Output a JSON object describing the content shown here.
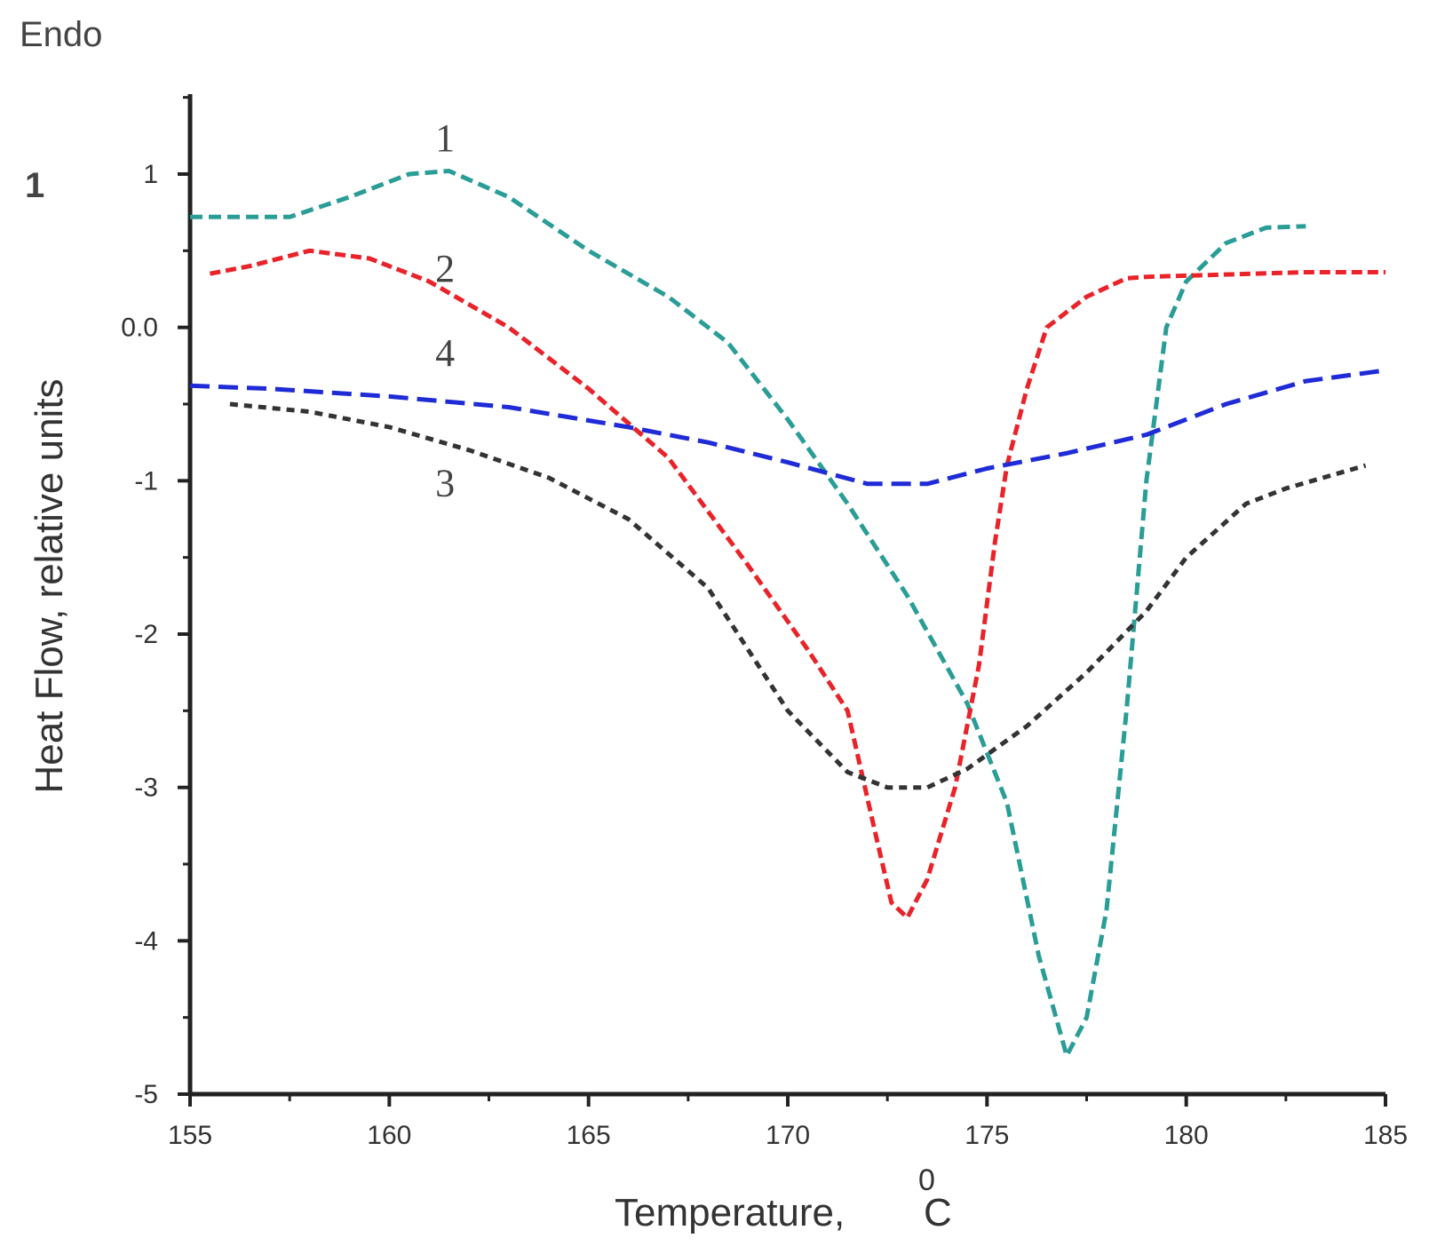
{
  "corner_label": "Endo",
  "panel_marker": "1",
  "chart_data": {
    "type": "line",
    "xlabel": "Temperature,",
    "xlabel_unit_superscript": "0",
    "xlabel_unit": "C",
    "ylabel": "Heat Flow, relative units",
    "xlim": [
      155,
      185
    ],
    "ylim": [
      -5,
      1.5
    ],
    "xticks": [
      155,
      160,
      165,
      170,
      175,
      180,
      185
    ],
    "xtick_labels": [
      "155",
      "160",
      "165",
      "170",
      "175",
      "180",
      "185"
    ],
    "yticks": [
      1,
      0,
      -1,
      -2,
      -3,
      -4,
      -5
    ],
    "ytick_labels": [
      "1",
      "0.0",
      "-1",
      "-2",
      "-3",
      "-4",
      "-5"
    ],
    "grid": false,
    "series": [
      {
        "name": "1",
        "color": "#2a9d97",
        "dash": "14 7",
        "label_at": [
          161.4,
          1.15
        ],
        "x": [
          155.0,
          156.0,
          157.5,
          159.0,
          160.5,
          161.5,
          163.0,
          165.0,
          167.0,
          168.5,
          170.0,
          171.5,
          173.0,
          174.5,
          175.5,
          176.3,
          177.0,
          177.5,
          178.0,
          178.5,
          179.0,
          179.5,
          180.0,
          181.0,
          182.0,
          183.0
        ],
        "y": [
          0.72,
          0.72,
          0.72,
          0.85,
          1.0,
          1.02,
          0.85,
          0.5,
          0.2,
          -0.1,
          -0.6,
          -1.15,
          -1.75,
          -2.45,
          -3.1,
          -4.1,
          -4.75,
          -4.5,
          -3.8,
          -2.5,
          -1.0,
          0.0,
          0.3,
          0.55,
          0.65,
          0.66
        ]
      },
      {
        "name": "2",
        "color": "#e8232a",
        "dash": "12 6",
        "label_at": [
          161.4,
          0.3
        ],
        "x": [
          155.5,
          156.5,
          158.0,
          159.5,
          161.0,
          163.0,
          165.0,
          167.0,
          169.0,
          170.5,
          171.5,
          172.2,
          172.6,
          173.0,
          173.5,
          174.2,
          174.8,
          175.2,
          175.5,
          176.0,
          176.5,
          177.5,
          178.5,
          179.0,
          183.0,
          185.0
        ],
        "y": [
          0.35,
          0.4,
          0.5,
          0.45,
          0.3,
          0.0,
          -0.4,
          -0.85,
          -1.55,
          -2.1,
          -2.5,
          -3.3,
          -3.75,
          -3.85,
          -3.6,
          -3.0,
          -2.2,
          -1.4,
          -0.9,
          -0.4,
          0.0,
          0.2,
          0.32,
          0.33,
          0.36,
          0.36
        ]
      },
      {
        "name": "3",
        "color": "#333333",
        "dash": "9 7",
        "label_at": [
          161.4,
          -1.1
        ],
        "x": [
          156.0,
          158.0,
          160.0,
          162.0,
          164.0,
          166.0,
          168.0,
          170.0,
          171.5,
          172.5,
          173.5,
          174.5,
          176.0,
          177.5,
          179.0,
          180.0,
          181.5,
          182.5,
          184.5
        ],
        "y": [
          -0.5,
          -0.55,
          -0.65,
          -0.8,
          -0.98,
          -1.25,
          -1.7,
          -2.5,
          -2.9,
          -3.0,
          -3.0,
          -2.88,
          -2.6,
          -2.25,
          -1.85,
          -1.5,
          -1.15,
          -1.05,
          -0.9
        ]
      },
      {
        "name": "4",
        "color": "#1f2bd6",
        "dash": "22 10",
        "label_at": [
          161.4,
          -0.25
        ],
        "x": [
          155.0,
          157.0,
          160.0,
          163.0,
          166.0,
          168.0,
          170.0,
          172.0,
          173.5,
          175.0,
          177.0,
          179.0,
          181.0,
          183.0,
          185.0
        ],
        "y": [
          -0.38,
          -0.4,
          -0.45,
          -0.52,
          -0.65,
          -0.75,
          -0.88,
          -1.02,
          -1.02,
          -0.92,
          -0.82,
          -0.7,
          -0.5,
          -0.35,
          -0.28
        ]
      }
    ]
  }
}
